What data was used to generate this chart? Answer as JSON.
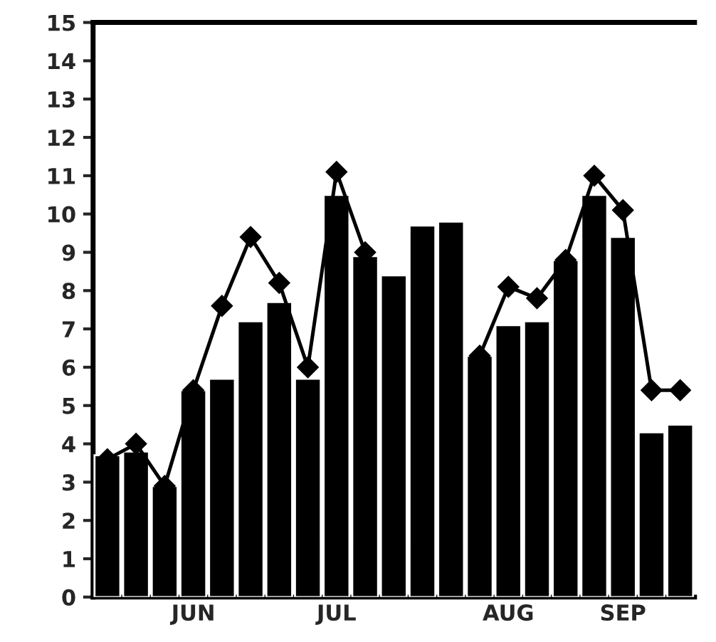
{
  "chart_data": {
    "type": "bar",
    "categories": [
      null,
      null,
      null,
      "JUN",
      null,
      null,
      null,
      null,
      "JUL",
      null,
      null,
      null,
      null,
      null,
      "AUG",
      null,
      null,
      null,
      "SEP",
      null,
      null
    ],
    "series": [
      {
        "color": "#000000",
        "values": [
          3.7,
          3.8,
          2.9,
          5.4,
          5.7,
          7.2,
          7.7,
          5.7,
          10.5,
          8.9,
          8.4,
          9.7,
          9.8,
          6.3,
          7.1,
          7.2,
          8.8,
          10.5,
          9.4,
          4.3,
          4.5
        ]
      },
      {
        "type": "line",
        "color": "#000000",
        "marker": "diamond",
        "line_style": "solid",
        "values": [
          3.6,
          4.0,
          2.9,
          5.4,
          7.6,
          9.4,
          8.2,
          6.0,
          11.1,
          9.0,
          null,
          null,
          null,
          6.3,
          8.1,
          7.8,
          8.8,
          11.0,
          10.1,
          5.4,
          5.4
        ]
      }
    ],
    "ylim": [
      0,
      15
    ],
    "yticks": [
      0,
      1,
      2,
      3,
      4,
      5,
      6,
      7,
      8,
      9,
      10,
      11,
      12,
      13,
      14,
      15
    ],
    "grid": false,
    "legend": false
  }
}
